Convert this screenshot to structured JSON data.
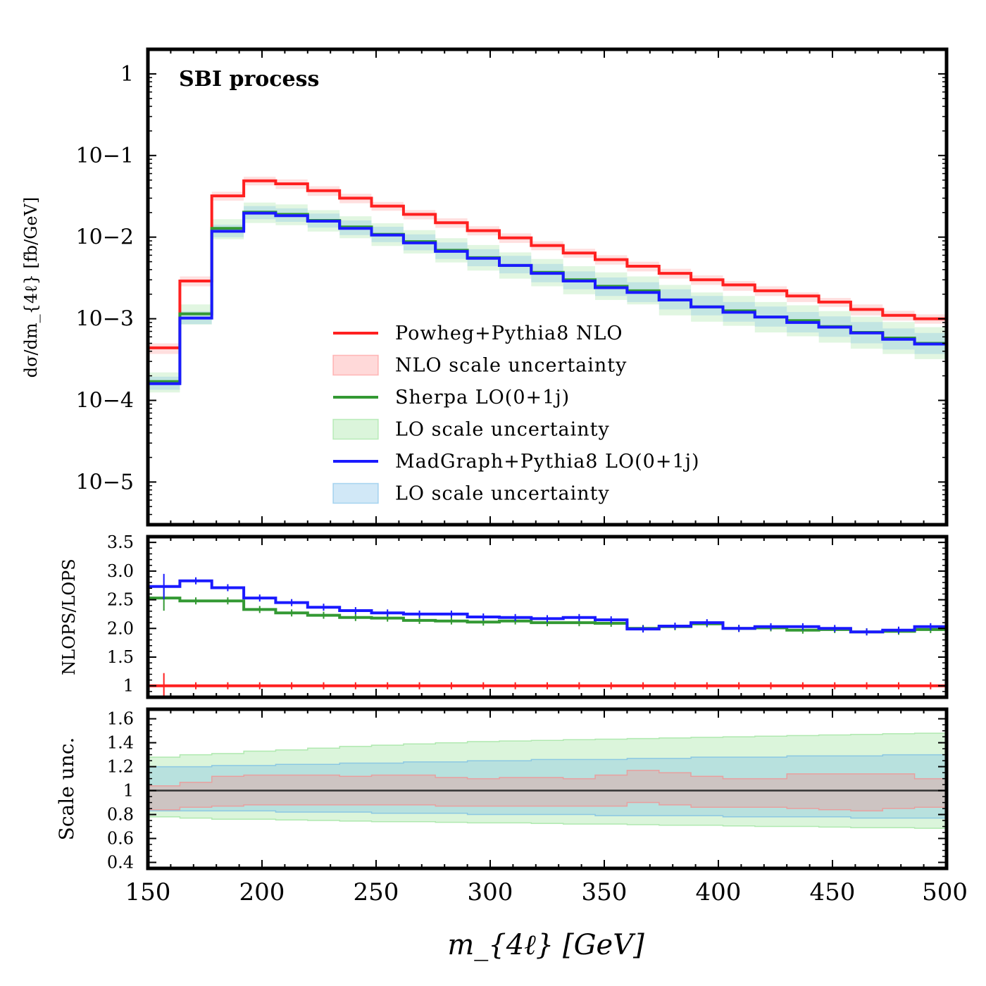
{
  "chart_data": [
    {
      "panel": "main",
      "type": "line",
      "subtype": "step-histogram",
      "title": "SBI process",
      "xlabel": "m_{4ℓ} [GeV]",
      "ylabel": "dσ/dm_{4ℓ} [fb/GeV]",
      "yscale": "log",
      "xlim": [
        150,
        500
      ],
      "ylim": [
        3e-06,
        2
      ],
      "yticks": [
        "1",
        "10−1",
        "10−2",
        "10−3",
        "10−4",
        "10−5"
      ],
      "bin_edges": [
        150,
        164,
        178,
        192,
        206,
        220,
        234,
        248,
        262,
        276,
        290,
        304,
        318,
        332,
        346,
        360,
        374,
        388,
        402,
        416,
        430,
        444,
        458,
        472,
        486,
        500
      ],
      "series": [
        {
          "name": "Powheg+Pythia8 NLO",
          "color": "#ff2020",
          "band_color": "#ff8080",
          "values": [
            0.00044,
            0.0029,
            0.032,
            0.049,
            0.045,
            0.037,
            0.03,
            0.024,
            0.019,
            0.015,
            0.012,
            0.0098,
            0.0079,
            0.0064,
            0.0053,
            0.0044,
            0.0036,
            0.003,
            0.0026,
            0.0022,
            0.0019,
            0.0016,
            0.0013,
            0.0011,
            0.001
          ],
          "band_low": [
            0.00037,
            0.0025,
            0.028,
            0.043,
            0.039,
            0.032,
            0.026,
            0.021,
            0.0165,
            0.013,
            0.0105,
            0.0085,
            0.0069,
            0.0056,
            0.0046,
            0.0038,
            0.0031,
            0.0026,
            0.0022,
            0.0019,
            0.0016,
            0.0014,
            0.0011,
            0.00095,
            0.00087
          ],
          "band_high": [
            0.0005,
            0.0033,
            0.036,
            0.055,
            0.051,
            0.042,
            0.034,
            0.027,
            0.0215,
            0.017,
            0.0136,
            0.0111,
            0.0089,
            0.0072,
            0.006,
            0.005,
            0.0041,
            0.0034,
            0.0029,
            0.0025,
            0.0021,
            0.0018,
            0.0015,
            0.00125,
            0.00113
          ]
        },
        {
          "name": "Sherpa LO(0+1j)",
          "color": "#339933",
          "band_color": "#88dd88",
          "values": [
            0.00017,
            0.00115,
            0.0128,
            0.0202,
            0.019,
            0.016,
            0.0133,
            0.0108,
            0.0088,
            0.0069,
            0.0056,
            0.0045,
            0.0037,
            0.003,
            0.0025,
            0.0022,
            0.0017,
            0.0014,
            0.00125,
            0.00105,
            0.00095,
            0.0008,
            0.00068,
            0.00058,
            0.0005
          ],
          "band_low": [
            0.000125,
            0.00085,
            0.0094,
            0.0149,
            0.014,
            0.0117,
            0.0097,
            0.0078,
            0.0063,
            0.0049,
            0.0039,
            0.0031,
            0.0025,
            0.002,
            0.0017,
            0.0015,
            0.0011,
            0.00092,
            0.00082,
            0.00068,
            0.00061,
            0.00051,
            0.00043,
            0.00037,
            0.00032
          ],
          "band_high": [
            0.00022,
            0.0015,
            0.0166,
            0.0265,
            0.0252,
            0.0214,
            0.018,
            0.0148,
            0.0122,
            0.0097,
            0.008,
            0.0065,
            0.0054,
            0.0044,
            0.0037,
            0.0033,
            0.0026,
            0.0021,
            0.0019,
            0.0016,
            0.00146,
            0.00124,
            0.00106,
            0.00091,
            0.00079
          ]
        },
        {
          "name": "MadGraph+Pythia8 LO(0+1j)",
          "color": "#1a1aff",
          "band_color": "#66b3e6",
          "values": [
            0.00016,
            0.00102,
            0.0118,
            0.0197,
            0.0183,
            0.0157,
            0.0128,
            0.0106,
            0.0085,
            0.0067,
            0.0055,
            0.0045,
            0.0036,
            0.0029,
            0.0024,
            0.0021,
            0.0017,
            0.0014,
            0.0012,
            0.00105,
            0.0009,
            0.00079,
            0.00067,
            0.00056,
            0.00049
          ],
          "band_low": [
            0.000135,
            0.00086,
            0.01,
            0.0166,
            0.0154,
            0.0131,
            0.0106,
            0.0087,
            0.0069,
            0.0054,
            0.0044,
            0.0036,
            0.0028,
            0.0023,
            0.0019,
            0.0016,
            0.0013,
            0.0011,
            0.00092,
            0.0008,
            0.00068,
            0.0006,
            0.0005,
            0.00042,
            0.00037
          ],
          "band_high": [
            0.000195,
            0.00123,
            0.0142,
            0.024,
            0.0225,
            0.0194,
            0.016,
            0.0134,
            0.0108,
            0.0086,
            0.0071,
            0.0059,
            0.0047,
            0.0038,
            0.0032,
            0.0028,
            0.0023,
            0.0019,
            0.0016,
            0.00141,
            0.00121,
            0.00107,
            0.00091,
            0.00076,
            0.00067
          ]
        }
      ],
      "legend": {
        "placement": "center",
        "entries": [
          {
            "label": "Powheg+Pythia8 NLO",
            "kind": "line",
            "color": "#ff2020"
          },
          {
            "label": "NLO scale uncertainty",
            "kind": "band",
            "color": "#ff8080"
          },
          {
            "label": "Sherpa LO(0+1j)",
            "kind": "line",
            "color": "#339933"
          },
          {
            "label": "LO scale uncertainty",
            "kind": "band",
            "color": "#88dd88"
          },
          {
            "label": "MadGraph+Pythia8 LO(0+1j)",
            "kind": "line",
            "color": "#1a1aff"
          },
          {
            "label": "LO scale uncertainty",
            "kind": "band",
            "color": "#66b3e6"
          }
        ]
      }
    },
    {
      "panel": "ratio",
      "type": "line",
      "subtype": "step-histogram",
      "ylabel": "NLOPS/LOPS",
      "xlim": [
        150,
        500
      ],
      "ylim": [
        0.8,
        3.6
      ],
      "yticks": [
        1,
        1.5,
        2.0,
        2.5,
        3.0,
        3.5
      ],
      "ytick_labels": [
        "1",
        "1.5",
        "2.0",
        "2.5",
        "3.0",
        "3.5"
      ],
      "series": [
        {
          "color": "#ff2020",
          "values": [
            1,
            1,
            1,
            1,
            1,
            1,
            1,
            1,
            1,
            1,
            1,
            1,
            1,
            1,
            1,
            1,
            1,
            1,
            1,
            1,
            1,
            1,
            1,
            1,
            1
          ]
        },
        {
          "color": "#339933",
          "values": [
            2.53,
            2.48,
            2.48,
            2.33,
            2.27,
            2.23,
            2.19,
            2.18,
            2.14,
            2.13,
            2.11,
            2.13,
            2.1,
            2.1,
            2.09,
            2.0,
            2.03,
            2.08,
            2.0,
            2.01,
            1.97,
            1.98,
            1.94,
            1.95,
            1.98
          ]
        },
        {
          "color": "#1a1aff",
          "values": [
            2.73,
            2.83,
            2.71,
            2.53,
            2.45,
            2.37,
            2.31,
            2.27,
            2.25,
            2.25,
            2.2,
            2.19,
            2.17,
            2.19,
            2.15,
            1.99,
            2.04,
            2.1,
            2.0,
            2.03,
            2.03,
            2.0,
            1.94,
            1.97,
            2.03
          ]
        }
      ]
    },
    {
      "panel": "scale",
      "type": "area",
      "subtype": "step-band",
      "ylabel": "Scale unc.",
      "xlabel": "m_{4ℓ} [GeV]",
      "xlim": [
        150,
        500
      ],
      "ylim": [
        0.35,
        1.68
      ],
      "yticks": [
        0.4,
        0.6,
        0.8,
        1,
        1.2,
        1.4,
        1.6
      ],
      "ytick_labels": [
        "0.4",
        "0.6",
        "0.8",
        "1",
        "1.2",
        "1.4",
        "1.6"
      ],
      "xticks": [
        150,
        200,
        250,
        300,
        350,
        400,
        450,
        500
      ],
      "xtick_labels": [
        "150",
        "200",
        "250",
        "300",
        "350",
        "400",
        "450",
        "500"
      ],
      "reference_line": 1,
      "bands": [
        {
          "name": "LO scale uncertainty (Sherpa)",
          "color": "#88dd88",
          "low": [
            0.78,
            0.77,
            0.76,
            0.76,
            0.755,
            0.75,
            0.745,
            0.74,
            0.74,
            0.735,
            0.73,
            0.73,
            0.725,
            0.72,
            0.72,
            0.715,
            0.71,
            0.71,
            0.705,
            0.7,
            0.7,
            0.695,
            0.69,
            0.69,
            0.685
          ],
          "high": [
            1.28,
            1.3,
            1.31,
            1.33,
            1.34,
            1.355,
            1.37,
            1.38,
            1.39,
            1.4,
            1.41,
            1.415,
            1.42,
            1.425,
            1.43,
            1.435,
            1.44,
            1.445,
            1.45,
            1.455,
            1.46,
            1.465,
            1.47,
            1.475,
            1.48
          ]
        },
        {
          "name": "LO scale uncertainty (MadGraph)",
          "color": "#66b3e6",
          "low": [
            0.83,
            0.83,
            0.83,
            0.83,
            0.82,
            0.82,
            0.82,
            0.81,
            0.81,
            0.81,
            0.8,
            0.8,
            0.8,
            0.8,
            0.79,
            0.79,
            0.79,
            0.79,
            0.78,
            0.78,
            0.78,
            0.78,
            0.77,
            0.77,
            0.77
          ],
          "high": [
            1.2,
            1.2,
            1.21,
            1.21,
            1.22,
            1.22,
            1.23,
            1.23,
            1.24,
            1.24,
            1.25,
            1.25,
            1.26,
            1.26,
            1.26,
            1.27,
            1.27,
            1.28,
            1.28,
            1.28,
            1.29,
            1.29,
            1.29,
            1.3,
            1.3
          ]
        },
        {
          "name": "NLO scale uncertainty",
          "color": "#ff8080",
          "low": [
            0.84,
            0.86,
            0.87,
            0.88,
            0.88,
            0.88,
            0.88,
            0.88,
            0.88,
            0.87,
            0.87,
            0.87,
            0.87,
            0.87,
            0.87,
            0.9,
            0.88,
            0.86,
            0.86,
            0.86,
            0.85,
            0.84,
            0.83,
            0.85,
            0.86
          ],
          "high": [
            1.04,
            1.07,
            1.12,
            1.13,
            1.13,
            1.13,
            1.12,
            1.13,
            1.13,
            1.11,
            1.1,
            1.11,
            1.11,
            1.1,
            1.13,
            1.17,
            1.15,
            1.12,
            1.1,
            1.1,
            1.14,
            1.14,
            1.14,
            1.14,
            1.1
          ]
        }
      ]
    }
  ]
}
